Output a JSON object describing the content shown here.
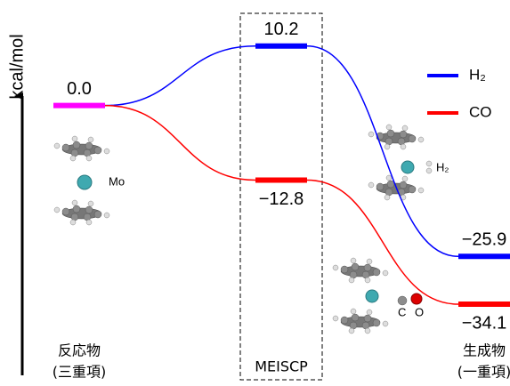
{
  "chart_data": {
    "type": "energy_profile",
    "y_label": "kcal/mol",
    "categories": [
      [
        "反応物",
        "(三重項)"
      ],
      [
        "MEISCP"
      ],
      [
        "生成物",
        "(一重項)"
      ]
    ],
    "start": {
      "value": 0,
      "value_label": "0.0",
      "color": "#ff00ff"
    },
    "series": [
      {
        "name": "H₂",
        "color": "#0000ff",
        "values": [
          null,
          10.2,
          -25.9
        ],
        "value_labels": [
          null,
          "10.2",
          "−25.9"
        ]
      },
      {
        "name": "CO",
        "color": "#ff0000",
        "values": [
          null,
          -12.8,
          -34.1
        ],
        "value_labels": [
          null,
          "−12.8",
          "−34.1"
        ]
      }
    ],
    "annotations": [
      "Mo",
      "H₂",
      "C",
      "O"
    ],
    "ylim": [
      -46,
      12
    ],
    "legend": "upper right"
  }
}
